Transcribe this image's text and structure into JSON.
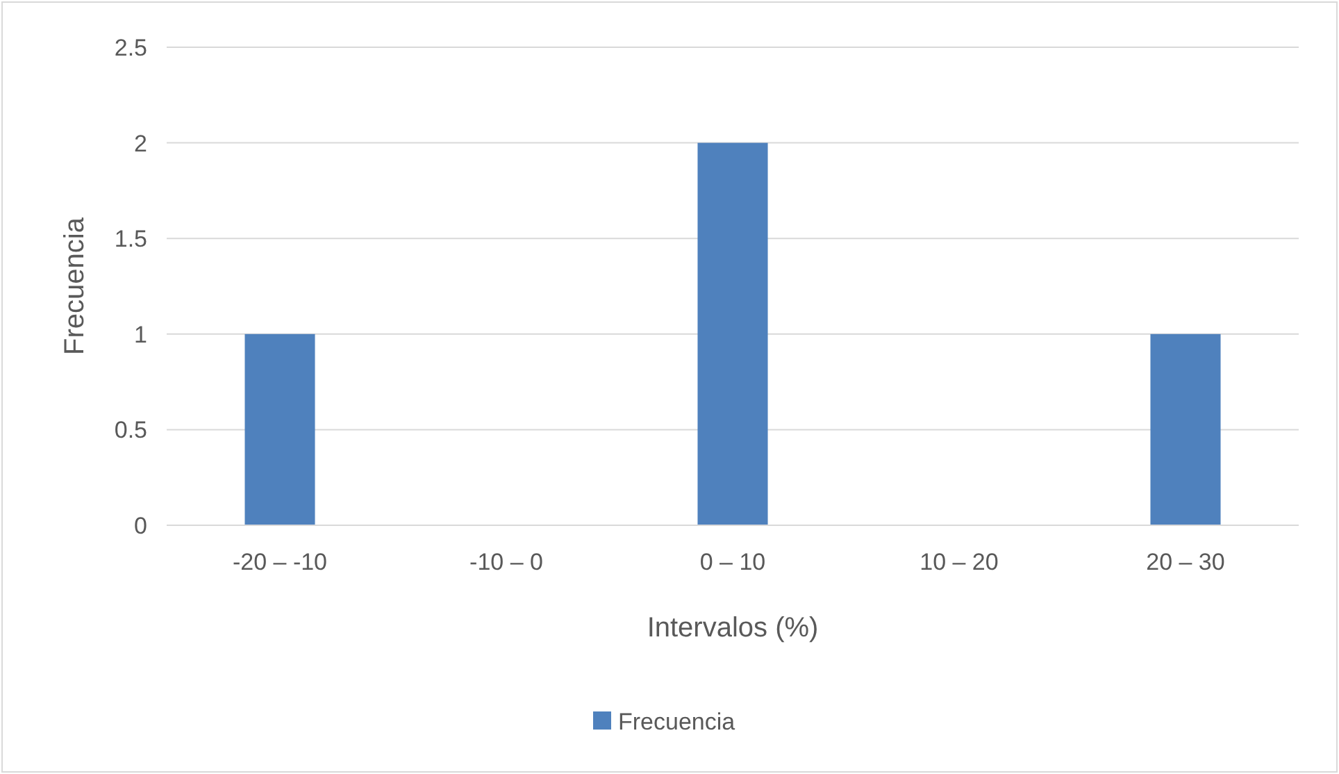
{
  "chart_data": {
    "type": "bar",
    "xlabel": "Intervalos (%)",
    "ylabel": "Frecuencia",
    "categories": [
      "-20 – -10",
      "-10 – 0",
      "0 – 10",
      "10 – 20",
      "20 – 30"
    ],
    "series": [
      {
        "name": "Frecuencia",
        "color": "#4f81bd",
        "values": [
          1,
          0,
          2,
          0,
          1
        ]
      }
    ],
    "ylim": [
      0,
      2.5
    ],
    "yticks": [
      0,
      0.5,
      1,
      1.5,
      2,
      2.5
    ],
    "grid": "y",
    "legend": "bottom"
  }
}
